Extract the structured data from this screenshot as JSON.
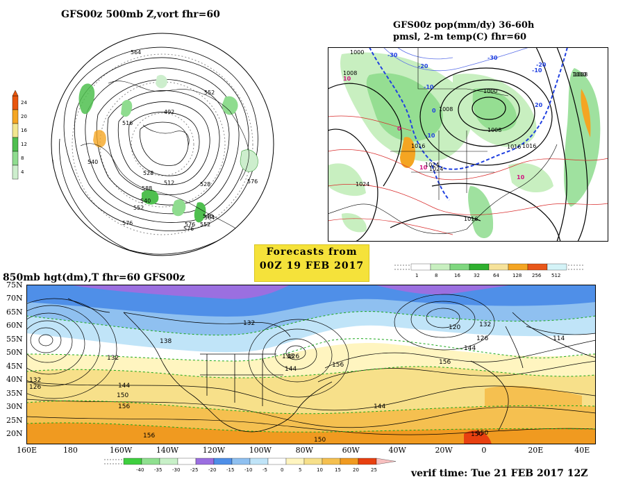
{
  "panels": {
    "vort": {
      "title": "GFS00z  500mb Z,vort    fhr=60",
      "scale_values": [
        "24",
        "20",
        "16",
        "12",
        "8",
        "4"
      ],
      "scale_colors": [
        "#e8560e",
        "#f5a623",
        "#f2e68f",
        "#4fbf4f",
        "#8fdc8f",
        "#cdeecd"
      ],
      "contour_labels": [
        "564",
        "552",
        "516",
        "492",
        "540",
        "528",
        "588",
        "512",
        "528",
        "576",
        "540",
        "552",
        "576",
        "576",
        "564",
        "552",
        "540",
        "576"
      ]
    },
    "pop": {
      "title_line1": "GFS00z pop(mm/dy) 36-60h",
      "title_line2": "pmsl, 2-m temp(C)  fhr=60",
      "isobar_labels": [
        "1000",
        "1008",
        "1016",
        "1024",
        "1008",
        "1000",
        "1008",
        "1016",
        "1016",
        "1024",
        "1024",
        "1016",
        "1008",
        "1000"
      ],
      "temp_labels": [
        "-30",
        "-20",
        "-10",
        "0",
        "10",
        "20",
        "10",
        "10",
        "-10",
        "-30",
        "-20",
        "-10",
        "0"
      ],
      "scale_values": [
        "1",
        "8",
        "16",
        "32",
        "64",
        "128",
        "256",
        "512"
      ],
      "scale_colors": [
        "#ffffff",
        "#c8efc0",
        "#7fd77f",
        "#2fb02f",
        "#f6e29a",
        "#f4a522",
        "#e8571a",
        "#d4f3f7"
      ]
    },
    "h850": {
      "title": "850mb hgt(dm),T  fhr=60 GFS00z",
      "lat_labels": [
        "75N",
        "70N",
        "65N",
        "60N",
        "55N",
        "50N",
        "45N",
        "40N",
        "35N",
        "30N",
        "25N",
        "20N"
      ],
      "lon_labels": [
        "160E",
        "180",
        "160W",
        "140W",
        "120W",
        "100W",
        "80W",
        "60W",
        "40W",
        "20W",
        "0",
        "20E",
        "40E"
      ],
      "height_labels": [
        "132",
        "138",
        "132",
        "144",
        "150",
        "156",
        "132",
        "126",
        "138",
        "144",
        "156",
        "144",
        "150",
        "156",
        "126",
        "120",
        "132",
        "126",
        "144",
        "114",
        "150",
        "156",
        "150"
      ],
      "scale_values": [
        "-40",
        "-35",
        "-30",
        "-25",
        "-20",
        "-15",
        "-10",
        "-5",
        "0",
        "5",
        "10",
        "15",
        "20",
        "25"
      ],
      "scale_colors": [
        "#3fcf3f",
        "#8fe08f",
        "#c8f0c8",
        "#ffffff",
        "#9b6fe0",
        "#4f8fe8",
        "#8fc0f0",
        "#c0e4f8",
        "#ffffff",
        "#fff5c0",
        "#f7e08a",
        "#f5c050",
        "#f09a20",
        "#e84010",
        "#f8c0c0"
      ]
    }
  },
  "forecast_note": {
    "line1": "Forecasts from",
    "line2": "00Z 19 FEB 2017"
  },
  "verif_time": "verif time: Tue 21 FEB 2017 12Z"
}
